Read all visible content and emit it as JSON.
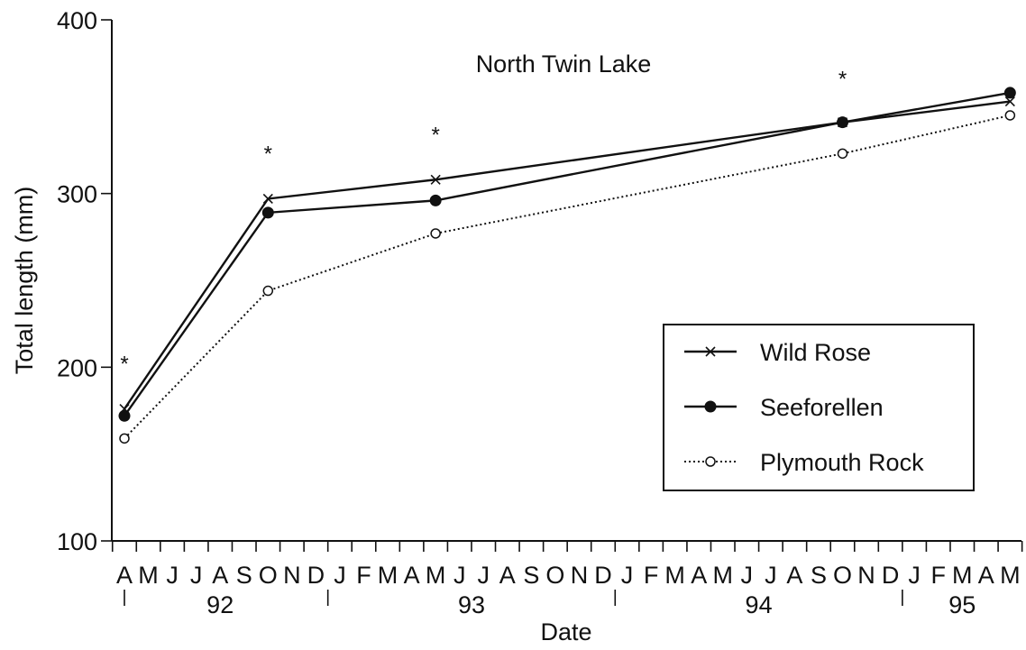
{
  "chart_data": {
    "type": "line",
    "title": "North Twin Lake",
    "xlabel": "Date",
    "ylabel": "Total length (mm)",
    "ylim": [
      100,
      400
    ],
    "yticks": [
      100,
      200,
      300,
      400
    ],
    "month_ticks": [
      "A",
      "M",
      "J",
      "J",
      "A",
      "S",
      "O",
      "N",
      "D",
      "J",
      "F",
      "M",
      "A",
      "M",
      "J",
      "J",
      "A",
      "S",
      "O",
      "N",
      "D",
      "J",
      "F",
      "M",
      "A",
      "M",
      "J",
      "J",
      "A",
      "S",
      "O",
      "N",
      "D",
      "J",
      "F",
      "M",
      "A",
      "M"
    ],
    "year_labels": [
      {
        "label": "92",
        "start": "1992-04",
        "end": "1992-12"
      },
      {
        "label": "93",
        "start": "1993-01",
        "end": "1993-12"
      },
      {
        "label": "94",
        "start": "1994-01",
        "end": "1994-12"
      },
      {
        "label": "95",
        "start": "1995-01",
        "end": "1995-05"
      }
    ],
    "x_range": [
      "1992-04",
      "1995-05"
    ],
    "x": [
      "1992-04",
      "1992-10",
      "1993-05",
      "1994-10",
      "1995-05"
    ],
    "series": [
      {
        "name": "Wild Rose",
        "marker": "cross",
        "line": "solid",
        "values": [
          176,
          297,
          308,
          341,
          353
        ]
      },
      {
        "name": "Seeforellen",
        "marker": "filled-circle",
        "line": "solid",
        "values": [
          172,
          289,
          296,
          341,
          358
        ]
      },
      {
        "name": "Plymouth Rock",
        "marker": "open-circle",
        "line": "dotted",
        "values": [
          159,
          244,
          277,
          323,
          345
        ]
      }
    ],
    "annotations": [
      {
        "text": "*",
        "x": "1992-04",
        "y": 205
      },
      {
        "text": "*",
        "x": "1992-10",
        "y": 326
      },
      {
        "text": "*",
        "x": "1993-05",
        "y": 337
      },
      {
        "text": "*",
        "x": "1994-10",
        "y": 369
      }
    ],
    "legend_position": "lower-right",
    "grid": false
  }
}
